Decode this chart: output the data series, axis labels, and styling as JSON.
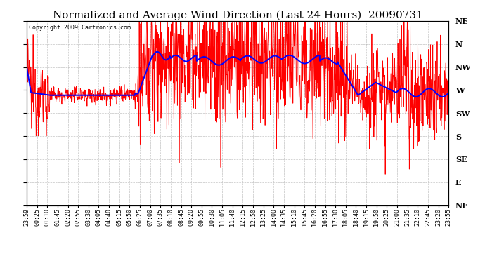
{
  "title": "Normalized and Average Wind Direction (Last 24 Hours)  20090731",
  "copyright": "Copyright 2009 Cartronics.com",
  "background_color": "#ffffff",
  "plot_bg_color": "#ffffff",
  "grid_color": "#aaaaaa",
  "red_color": "#ff0000",
  "blue_color": "#0000ff",
  "y_labels": [
    "NE",
    "N",
    "NW",
    "W",
    "SW",
    "S",
    "SE",
    "E",
    "NE"
  ],
  "y_ticks": [
    360,
    315,
    270,
    225,
    180,
    135,
    90,
    45,
    0
  ],
  "ylim": [
    0,
    360
  ],
  "x_tick_labels": [
    "23:59",
    "00:25",
    "01:10",
    "01:45",
    "02:20",
    "02:55",
    "03:30",
    "04:05",
    "04:40",
    "05:15",
    "05:50",
    "06:25",
    "07:00",
    "07:35",
    "08:10",
    "08:45",
    "09:20",
    "09:55",
    "10:30",
    "11:05",
    "11:40",
    "12:15",
    "12:50",
    "13:25",
    "14:00",
    "14:35",
    "15:10",
    "15:45",
    "16:20",
    "16:55",
    "17:30",
    "18:05",
    "18:40",
    "19:15",
    "19:50",
    "20:25",
    "21:00",
    "21:35",
    "22:10",
    "22:45",
    "23:20",
    "23:55"
  ],
  "title_fontsize": 11,
  "copyright_fontsize": 6,
  "tick_fontsize": 6,
  "y_label_fontsize": 8,
  "figwidth": 6.9,
  "figheight": 3.75,
  "dpi": 100
}
